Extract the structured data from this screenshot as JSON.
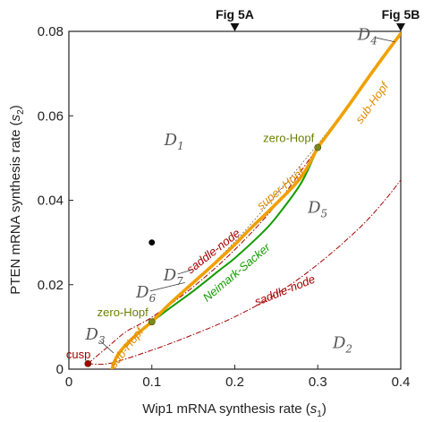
{
  "chart_data": {
    "type": "line",
    "xlabel_main": "Wip1 mRNA synthesis rate (",
    "xlabel_var": "s",
    "xlabel_sub": "1",
    "xlabel_end": ")",
    "ylabel_main": "PTEN mRNA synthesis rate (",
    "ylabel_var": "s",
    "ylabel_sub": "2",
    "ylabel_end": ")",
    "xlim": [
      0,
      0.4
    ],
    "ylim": [
      0,
      0.08
    ],
    "x_ticks": [
      "0",
      "0.1",
      "0.2",
      "0.3",
      "0.4"
    ],
    "y_ticks": [
      "0",
      "0.02",
      "0.04",
      "0.06",
      "0.08"
    ],
    "x_tick_values": [
      0,
      0.1,
      0.2,
      0.3,
      0.4
    ],
    "y_tick_values": [
      0,
      0.02,
      0.04,
      0.06,
      0.08
    ],
    "top_markers": [
      {
        "label": "Fig 5A",
        "x": 0.2
      },
      {
        "label": "Fig 5B",
        "x": 0.4
      }
    ],
    "regions": [
      {
        "label": "D",
        "sub": "1",
        "x": 0.115,
        "y": 0.053
      },
      {
        "label": "D",
        "sub": "2",
        "x": 0.318,
        "y": 0.005
      },
      {
        "label": "D",
        "sub": "3",
        "x": 0.02,
        "y": 0.007
      },
      {
        "label": "D",
        "sub": "4",
        "x": 0.348,
        "y": 0.078
      },
      {
        "label": "D",
        "sub": "5",
        "x": 0.288,
        "y": 0.037
      },
      {
        "label": "D",
        "sub": "6",
        "x": 0.081,
        "y": 0.017
      },
      {
        "label": "D",
        "sub": "7",
        "x": 0.114,
        "y": 0.021
      }
    ],
    "series": [
      {
        "name": "saddle-node",
        "color": "#a40000",
        "style": "dash-dot",
        "x": [
          0.023,
          0.05,
          0.1,
          0.15,
          0.2,
          0.25,
          0.3,
          0.35,
          0.38,
          0.4
        ],
        "y": [
          0.0013,
          0.0014,
          0.0045,
          0.0082,
          0.0124,
          0.0178,
          0.0248,
          0.0334,
          0.0398,
          0.0448
        ]
      },
      {
        "name": "saddle-node",
        "color": "#a40000",
        "style": "dash-dot",
        "x": [
          0.023,
          0.05,
          0.07,
          0.1,
          0.15,
          0.2,
          0.25,
          0.3,
          0.35,
          0.38,
          0.4
        ],
        "y": [
          0.0013,
          0.0058,
          0.009,
          0.0123,
          0.0195,
          0.0283,
          0.039,
          0.0525,
          0.0663,
          0.0742,
          0.0791
        ]
      },
      {
        "name": "Neimark-Sacker",
        "color": "#139c00",
        "style": "solid",
        "x": [
          0.1,
          0.12,
          0.15,
          0.18,
          0.2,
          0.23,
          0.25,
          0.28,
          0.3
        ],
        "y": [
          0.0112,
          0.0142,
          0.0185,
          0.0232,
          0.0263,
          0.0317,
          0.036,
          0.0441,
          0.0525
        ]
      },
      {
        "name": "sub-Hopf",
        "color": "#f0a000",
        "style": "solid",
        "x": [
          0.052,
          0.055,
          0.06,
          0.07,
          0.08,
          0.09,
          0.1
        ],
        "y": [
          0.0,
          0.0018,
          0.0037,
          0.006,
          0.0079,
          0.0096,
          0.0112
        ]
      },
      {
        "name": "super-Hopf",
        "color": "#f0a000",
        "style": "solid",
        "x": [
          0.1,
          0.12,
          0.15,
          0.18,
          0.2,
          0.22,
          0.25,
          0.28,
          0.3
        ],
        "y": [
          0.0112,
          0.0152,
          0.0205,
          0.0258,
          0.0295,
          0.0335,
          0.0392,
          0.0455,
          0.0525
        ]
      },
      {
        "name": "sub-Hopf",
        "color": "#f0a000",
        "style": "solid",
        "x": [
          0.3,
          0.32,
          0.34,
          0.36,
          0.38,
          0.4
        ],
        "y": [
          0.0525,
          0.0578,
          0.0632,
          0.0688,
          0.0742,
          0.0795
        ]
      }
    ],
    "special_points": [
      {
        "label": "zero-Hopf",
        "x": 0.1,
        "y": 0.0112,
        "color": "#7a8a1a"
      },
      {
        "label": "zero-Hopf",
        "x": 0.3,
        "y": 0.0525,
        "color": "#7a8a1a"
      },
      {
        "label": "cusp",
        "x": 0.023,
        "y": 0.0013,
        "color": "#a40000"
      }
    ],
    "extra_point": {
      "x": 0.1,
      "y": 0.03
    }
  }
}
